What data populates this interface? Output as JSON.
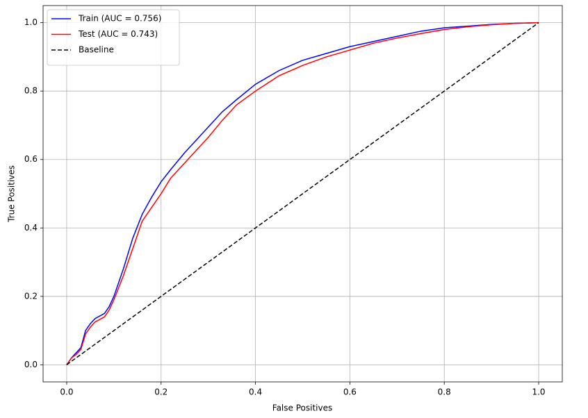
{
  "chart_data": {
    "type": "line",
    "xlabel": "False Positives",
    "ylabel": "True Positives",
    "x": [
      0,
      0.01,
      0.02,
      0.03,
      0.04,
      0.05,
      0.06,
      0.08,
      0.09,
      0.1,
      0.12,
      0.14,
      0.16,
      0.18,
      0.2,
      0.22,
      0.25,
      0.28,
      0.3,
      0.33,
      0.36,
      0.4,
      0.45,
      0.5,
      0.55,
      0.6,
      0.65,
      0.7,
      0.75,
      0.8,
      0.85,
      0.9,
      0.95,
      1.0
    ],
    "series": [
      {
        "name": "Train (AUC = 0.756)",
        "color": "#0000ff",
        "linestyle": "solid",
        "values": [
          0,
          0.02,
          0.035,
          0.05,
          0.1,
          0.12,
          0.135,
          0.15,
          0.17,
          0.2,
          0.28,
          0.37,
          0.44,
          0.49,
          0.535,
          0.57,
          0.62,
          0.665,
          0.695,
          0.74,
          0.775,
          0.82,
          0.86,
          0.89,
          0.91,
          0.93,
          0.945,
          0.96,
          0.975,
          0.985,
          0.99,
          0.995,
          0.998,
          1.0
        ]
      },
      {
        "name": "Test (AUC = 0.743)",
        "color": "#ff0000",
        "linestyle": "solid",
        "values": [
          0,
          0.02,
          0.03,
          0.045,
          0.09,
          0.11,
          0.125,
          0.14,
          0.16,
          0.19,
          0.26,
          0.34,
          0.42,
          0.46,
          0.5,
          0.545,
          0.59,
          0.635,
          0.665,
          0.715,
          0.76,
          0.8,
          0.845,
          0.875,
          0.9,
          0.92,
          0.94,
          0.955,
          0.968,
          0.98,
          0.988,
          0.994,
          0.998,
          1.0
        ]
      },
      {
        "name": "Baseline",
        "color": "#000000",
        "linestyle": "dashed",
        "values": [
          0,
          0.01,
          0.02,
          0.03,
          0.04,
          0.05,
          0.06,
          0.08,
          0.09,
          0.1,
          0.12,
          0.14,
          0.16,
          0.18,
          0.2,
          0.22,
          0.25,
          0.28,
          0.3,
          0.33,
          0.36,
          0.4,
          0.45,
          0.5,
          0.55,
          0.6,
          0.65,
          0.7,
          0.75,
          0.8,
          0.85,
          0.9,
          0.95,
          1.0
        ]
      }
    ],
    "xlim": [
      -0.05,
      1.05
    ],
    "ylim": [
      -0.05,
      1.05
    ],
    "xticks": [
      {
        "value": 0,
        "label": "0.0"
      },
      0.2,
      0.4,
      0.6,
      0.8,
      {
        "value": 1,
        "label": "1.0"
      }
    ],
    "yticks": [
      {
        "value": 0,
        "label": "0.0"
      },
      0.2,
      0.4,
      0.6,
      0.8,
      {
        "value": 1,
        "label": "1.0"
      }
    ],
    "grid": true,
    "legend": "upper left"
  }
}
